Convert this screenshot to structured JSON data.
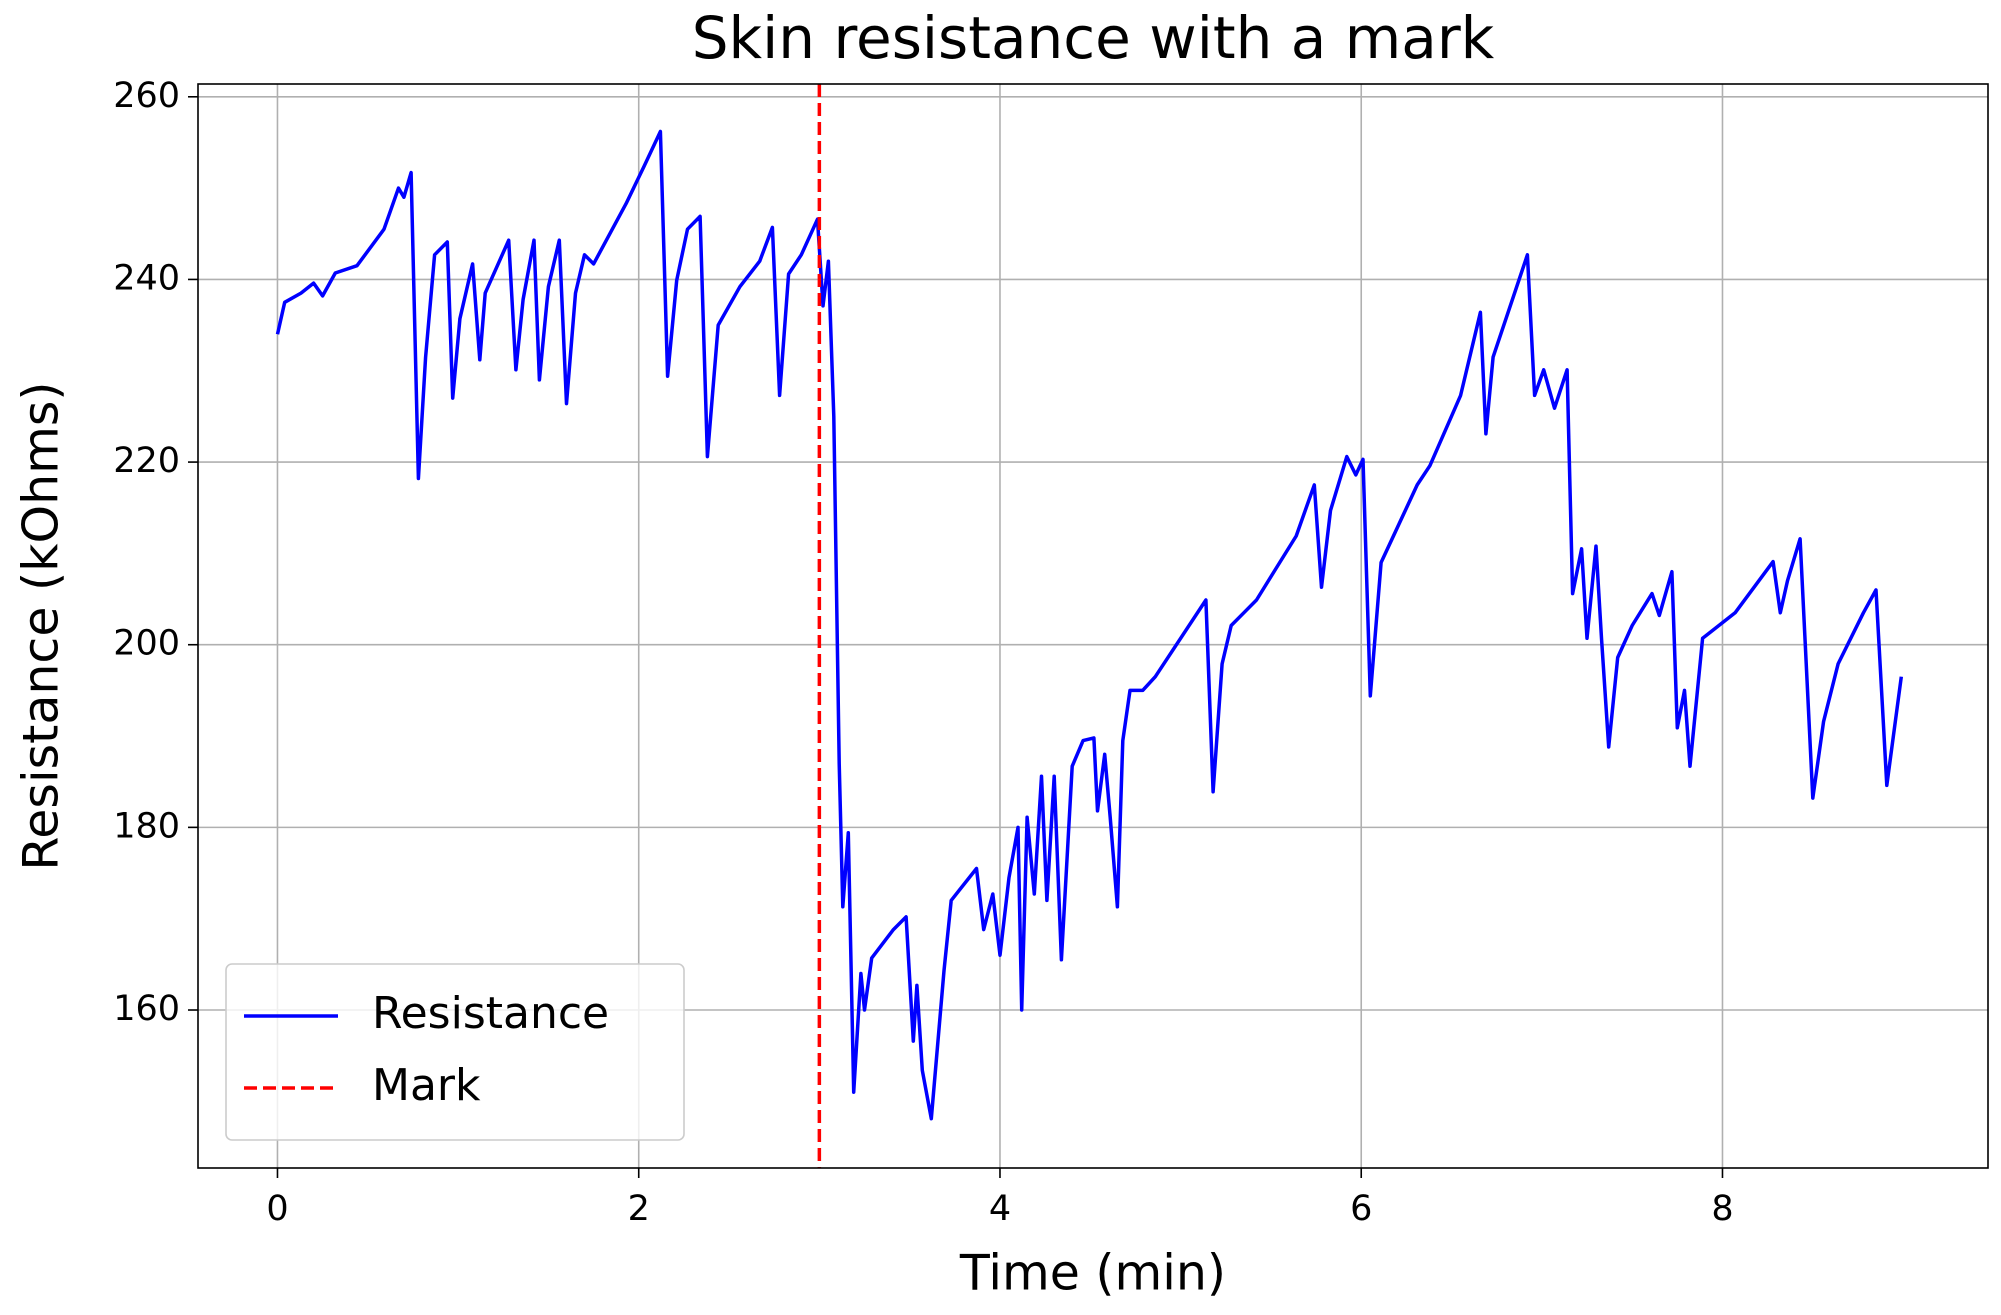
{
  "chart_data": {
    "type": "line",
    "title": "Skin resistance with a mark",
    "xlabel": "Time (min)",
    "ylabel": "Resistance (kOhms)",
    "xlim": [
      -0.44,
      9.47
    ],
    "ylim": [
      142.7,
      261.4
    ],
    "xticks": [
      0,
      2,
      4,
      6,
      8
    ],
    "yticks": [
      160,
      180,
      200,
      220,
      240,
      260
    ],
    "grid": true,
    "legend": "lower left",
    "series": [
      {
        "name": "Resistance",
        "color": "#0000ff",
        "x": [
          0,
          0.04,
          0.13,
          0.2,
          0.25,
          0.32,
          0.44,
          0.59,
          0.67,
          0.7,
          0.74,
          0.78,
          0.82,
          0.87,
          0.94,
          0.97,
          1.01,
          1.08,
          1.12,
          1.15,
          1.28,
          1.32,
          1.36,
          1.42,
          1.45,
          1.5,
          1.56,
          1.6,
          1.65,
          1.7,
          1.75,
          1.93,
          2.03,
          2.12,
          2.16,
          2.21,
          2.27,
          2.34,
          2.38,
          2.44,
          2.56,
          2.67,
          2.74,
          2.78,
          2.83,
          2.9,
          2.99,
          3.02,
          3.05,
          3.08,
          3.11,
          3.13,
          3.16,
          3.19,
          3.23,
          3.25,
          3.29,
          3.41,
          3.48,
          3.52,
          3.54,
          3.57,
          3.62,
          3.69,
          3.73,
          3.87,
          3.91,
          3.96,
          4.0,
          4.05,
          4.1,
          4.12,
          4.15,
          4.19,
          4.23,
          4.26,
          4.3,
          4.34,
          4.4,
          4.46,
          4.52,
          4.54,
          4.58,
          4.61,
          4.65,
          4.68,
          4.72,
          4.79,
          4.86,
          5.14,
          5.18,
          5.23,
          5.28,
          5.35,
          5.42,
          5.53,
          5.64,
          5.74,
          5.78,
          5.83,
          5.92,
          5.97,
          6.01,
          6.05,
          6.11,
          6.31,
          6.38,
          6.55,
          6.66,
          6.69,
          6.73,
          6.92,
          6.96,
          7.01,
          7.07,
          7.14,
          7.17,
          7.22,
          7.25,
          7.3,
          7.33,
          7.37,
          7.42,
          7.5,
          7.61,
          7.65,
          7.72,
          7.75,
          7.79,
          7.82,
          7.89,
          8.07,
          8.28,
          8.32,
          8.36,
          8.43,
          8.5,
          8.56,
          8.64,
          8.78,
          8.85,
          8.91,
          8.99
        ],
        "values": [
          234,
          237.5,
          238.5,
          239.6,
          238.2,
          240.7,
          241.5,
          245.5,
          250,
          249,
          251.7,
          218.2,
          231.5,
          242.7,
          244.1,
          227,
          235.7,
          241.7,
          231.2,
          238.5,
          244.3,
          230.1,
          237.8,
          244.3,
          229,
          239.2,
          244.3,
          226.4,
          238.5,
          242.7,
          241.7,
          248.3,
          252.4,
          256.2,
          229.4,
          239.9,
          245.5,
          246.9,
          220.6,
          235,
          239.2,
          242,
          245.7,
          227.3,
          240.6,
          242.7,
          246.6,
          237.1,
          242,
          225,
          187,
          171.3,
          179.4,
          151,
          164,
          160,
          165.7,
          168.8,
          170.2,
          156.6,
          162.7,
          153.4,
          148.1,
          164.3,
          172,
          175.5,
          168.8,
          172.7,
          166,
          174.5,
          180,
          160,
          181.1,
          172.7,
          185.6,
          172,
          185.6,
          165.5,
          186.7,
          189.5,
          189.8,
          181.8,
          188,
          181.1,
          171.3,
          189.5,
          195,
          195,
          196.5,
          204.9,
          183.9,
          197.9,
          202.1,
          203.5,
          204.9,
          208.4,
          211.9,
          217.5,
          206.3,
          214.7,
          220.6,
          218.6,
          220.3,
          194.4,
          209,
          217.5,
          219.6,
          227.3,
          236.4,
          223.1,
          231.5,
          242.7,
          227.3,
          230.1,
          225.9,
          230.1,
          205.6,
          210.5,
          200.7,
          210.8,
          200.7,
          188.8,
          198.6,
          202.1,
          205.6,
          203.2,
          208,
          190.9,
          195,
          186.7,
          200.7,
          203.5,
          209.1,
          203.5,
          207,
          211.6,
          183.2,
          191.6,
          197.9,
          203.5,
          206,
          184.6,
          196.5
        ]
      }
    ],
    "vlines": [
      {
        "name": "Mark",
        "x": 3,
        "color": "#ff0000"
      }
    ]
  }
}
